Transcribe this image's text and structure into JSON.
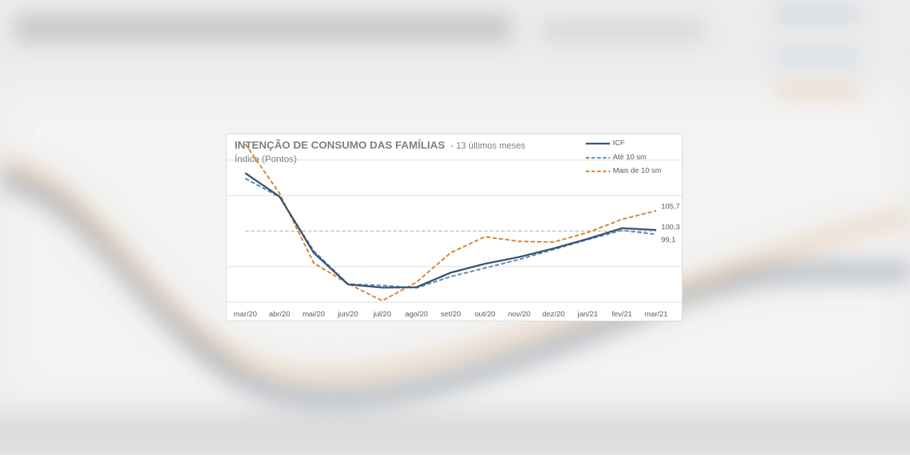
{
  "colors": {
    "icf": "#3b5673",
    "ate10": "#5f8ab6",
    "mais10": "#d98634",
    "reference": "#bfbfbf",
    "grid": "#d9d9d9",
    "label": "#595959"
  },
  "chart_data": {
    "type": "line",
    "title": "INTENÇÃO DE CONSUMO DAS FAMÍLIAS",
    "title_suffix": "- 13 últimos meses",
    "subtitle": "Índice (Pontos)",
    "xlabel": "",
    "ylabel": "",
    "categories": [
      "mar/20",
      "abr/20",
      "mai/20",
      "jun/20",
      "jul/20",
      "ago/20",
      "set/20",
      "out/20",
      "nov/20",
      "dez/20",
      "jan/21",
      "fev/21",
      "mar/21"
    ],
    "ylim": [
      80,
      120
    ],
    "gridlines": [
      80,
      90,
      100,
      110,
      120
    ],
    "reference_line": 100,
    "legend_position": "top-right",
    "series": [
      {
        "name": "ICF",
        "style": "solid",
        "values": [
          116.3,
          109.7,
          93.9,
          85.0,
          84.1,
          84.2,
          88.3,
          90.8,
          92.7,
          95.1,
          97.8,
          100.8,
          100.3
        ]
      },
      {
        "name": "Até 10 sm",
        "style": "dashed",
        "values": [
          114.8,
          109.6,
          94.4,
          85.1,
          84.7,
          84.0,
          87.2,
          89.6,
          92.0,
          94.8,
          97.6,
          100.2,
          99.1
        ]
      },
      {
        "name": "Mais de 10 sm",
        "style": "dashed",
        "values": [
          124.5,
          110.6,
          91.0,
          85.2,
          80.4,
          85.6,
          93.9,
          98.4,
          97.1,
          96.9,
          99.6,
          103.3,
          105.7
        ]
      }
    ],
    "end_labels": [
      {
        "series": "Mais de 10 sm",
        "text": "105,7"
      },
      {
        "series": "ICF",
        "text": "100,3"
      },
      {
        "series": "Até 10 sm",
        "text": "99,1"
      }
    ]
  }
}
